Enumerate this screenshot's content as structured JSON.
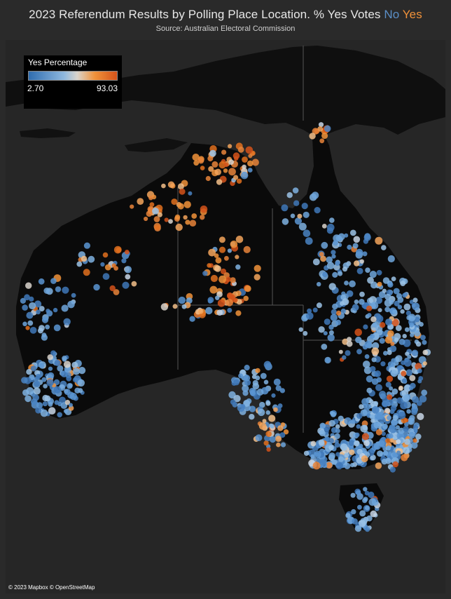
{
  "header": {
    "title_main": "2023 Referendum Results by Polling Place Location. % Yes Votes",
    "title_no": "No",
    "title_yes": "Yes",
    "subtitle": "Source: Australian Electoral Commission"
  },
  "legend": {
    "title": "Yes Percentage",
    "min": "2.70",
    "max": "93.03",
    "color_low": "#2f6db0",
    "color_mid": "#d9d4cc",
    "color_high": "#d3521a"
  },
  "attribution": "© 2023 Mapbox © OpenStreetMap",
  "colors": {
    "no": "#5b8fc7",
    "yes": "#f0923a",
    "land": "#0d0d0d",
    "background": "#262626"
  }
}
